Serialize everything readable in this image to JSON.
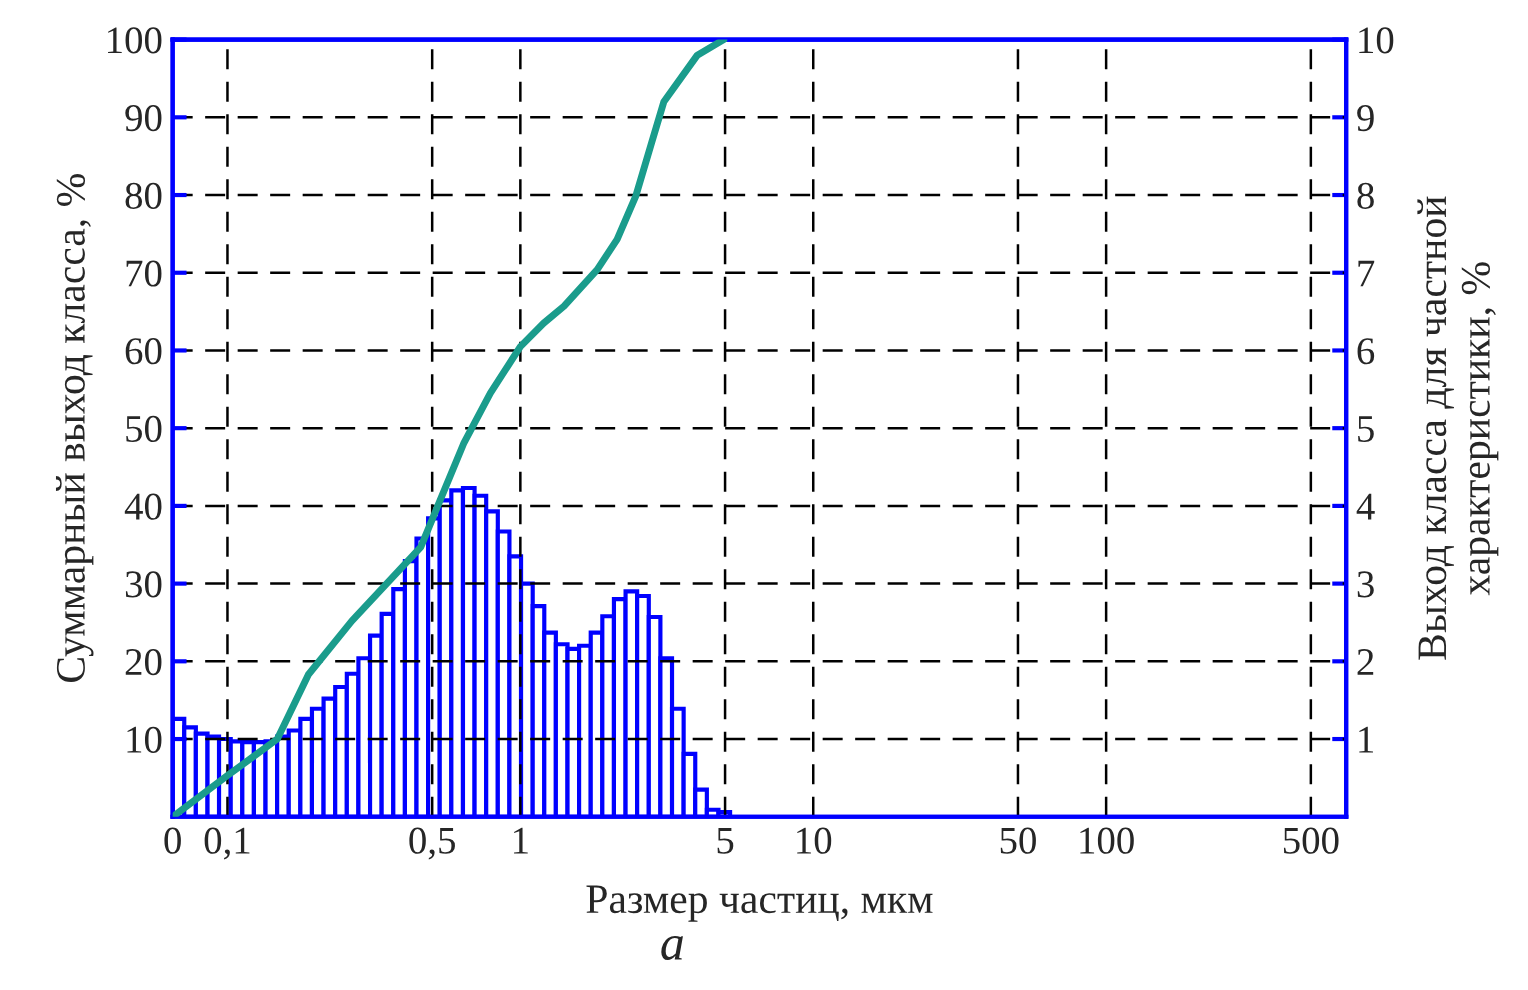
{
  "chart_data": {
    "type": "histogram",
    "xlabel": "Размер частиц, мкм",
    "ylabel": "Суммарный выход класса, %",
    "y2label": "Выход класса для частной\nхарактеристики, %",
    "annotations": [
      "а"
    ],
    "log": "x",
    "grid": true,
    "xlim": [
      0.065,
      660
    ],
    "xticks": [
      {
        "value": 0.065,
        "label": "0"
      },
      {
        "value": 0.1,
        "label": "0,1"
      },
      {
        "value": 0.5,
        "label": "0,5"
      },
      1,
      5,
      10,
      50,
      100,
      500
    ],
    "ylim": [
      0,
      100
    ],
    "yticks": [
      10,
      20,
      30,
      40,
      50,
      60,
      70,
      80,
      90,
      100
    ],
    "y2lim": [
      0,
      10
    ],
    "y2ticks": [
      1,
      2,
      3,
      4,
      5,
      6,
      7,
      8,
      9,
      10
    ],
    "series": [
      {
        "type": "histogram",
        "axis": "y2",
        "color": "#0000ff",
        "bins": [
          0.065,
          0.0712,
          0.078,
          0.0855,
          0.0936,
          0.1026,
          0.1124,
          0.1231,
          0.1349,
          0.1478,
          0.1619,
          0.1774,
          0.1943,
          0.2129,
          0.2333,
          0.2556,
          0.28,
          0.3068,
          0.3361,
          0.3683,
          0.4035,
          0.442,
          0.4843,
          0.5306,
          0.5813,
          0.6369,
          0.6978,
          0.7645,
          0.8376,
          0.9177,
          1.0055,
          1.102,
          1.207,
          1.322,
          1.449,
          1.587,
          1.739,
          1.905,
          2.087,
          2.287,
          2.505,
          2.745,
          3.007,
          3.295,
          3.61,
          3.955,
          4.333,
          4.747,
          5.201
        ],
        "values": [
          1.26,
          1.15,
          1.07,
          1.03,
          1.0,
          0.97,
          0.96,
          0.96,
          0.97,
          1.03,
          1.11,
          1.26,
          1.39,
          1.52,
          1.67,
          1.84,
          2.04,
          2.33,
          2.61,
          2.93,
          3.29,
          3.58,
          3.84,
          4.07,
          4.2,
          4.23,
          4.13,
          3.93,
          3.67,
          3.35,
          3.0,
          2.71,
          2.37,
          2.22,
          2.16,
          2.2,
          2.37,
          2.58,
          2.8,
          2.9,
          2.84,
          2.57,
          2.04,
          1.39,
          0.81,
          0.35,
          0.09,
          0.06
        ]
      },
      {
        "type": "line",
        "axis": "y",
        "color": "#1a9c8c",
        "x": [
          0.065,
          0.1,
          0.148,
          0.189,
          0.266,
          0.457,
          0.52,
          0.64,
          0.79,
          1.0,
          1.2,
          1.41,
          1.83,
          2.14,
          2.48,
          2.79,
          3.09,
          4.02,
          4.95
        ],
        "values": [
          0,
          5.3,
          10,
          18.3,
          25.2,
          34.7,
          39.8,
          48,
          54.5,
          60.5,
          63.5,
          65.7,
          70.4,
          74.3,
          79.9,
          86.4,
          92,
          98,
          100
        ]
      }
    ]
  }
}
